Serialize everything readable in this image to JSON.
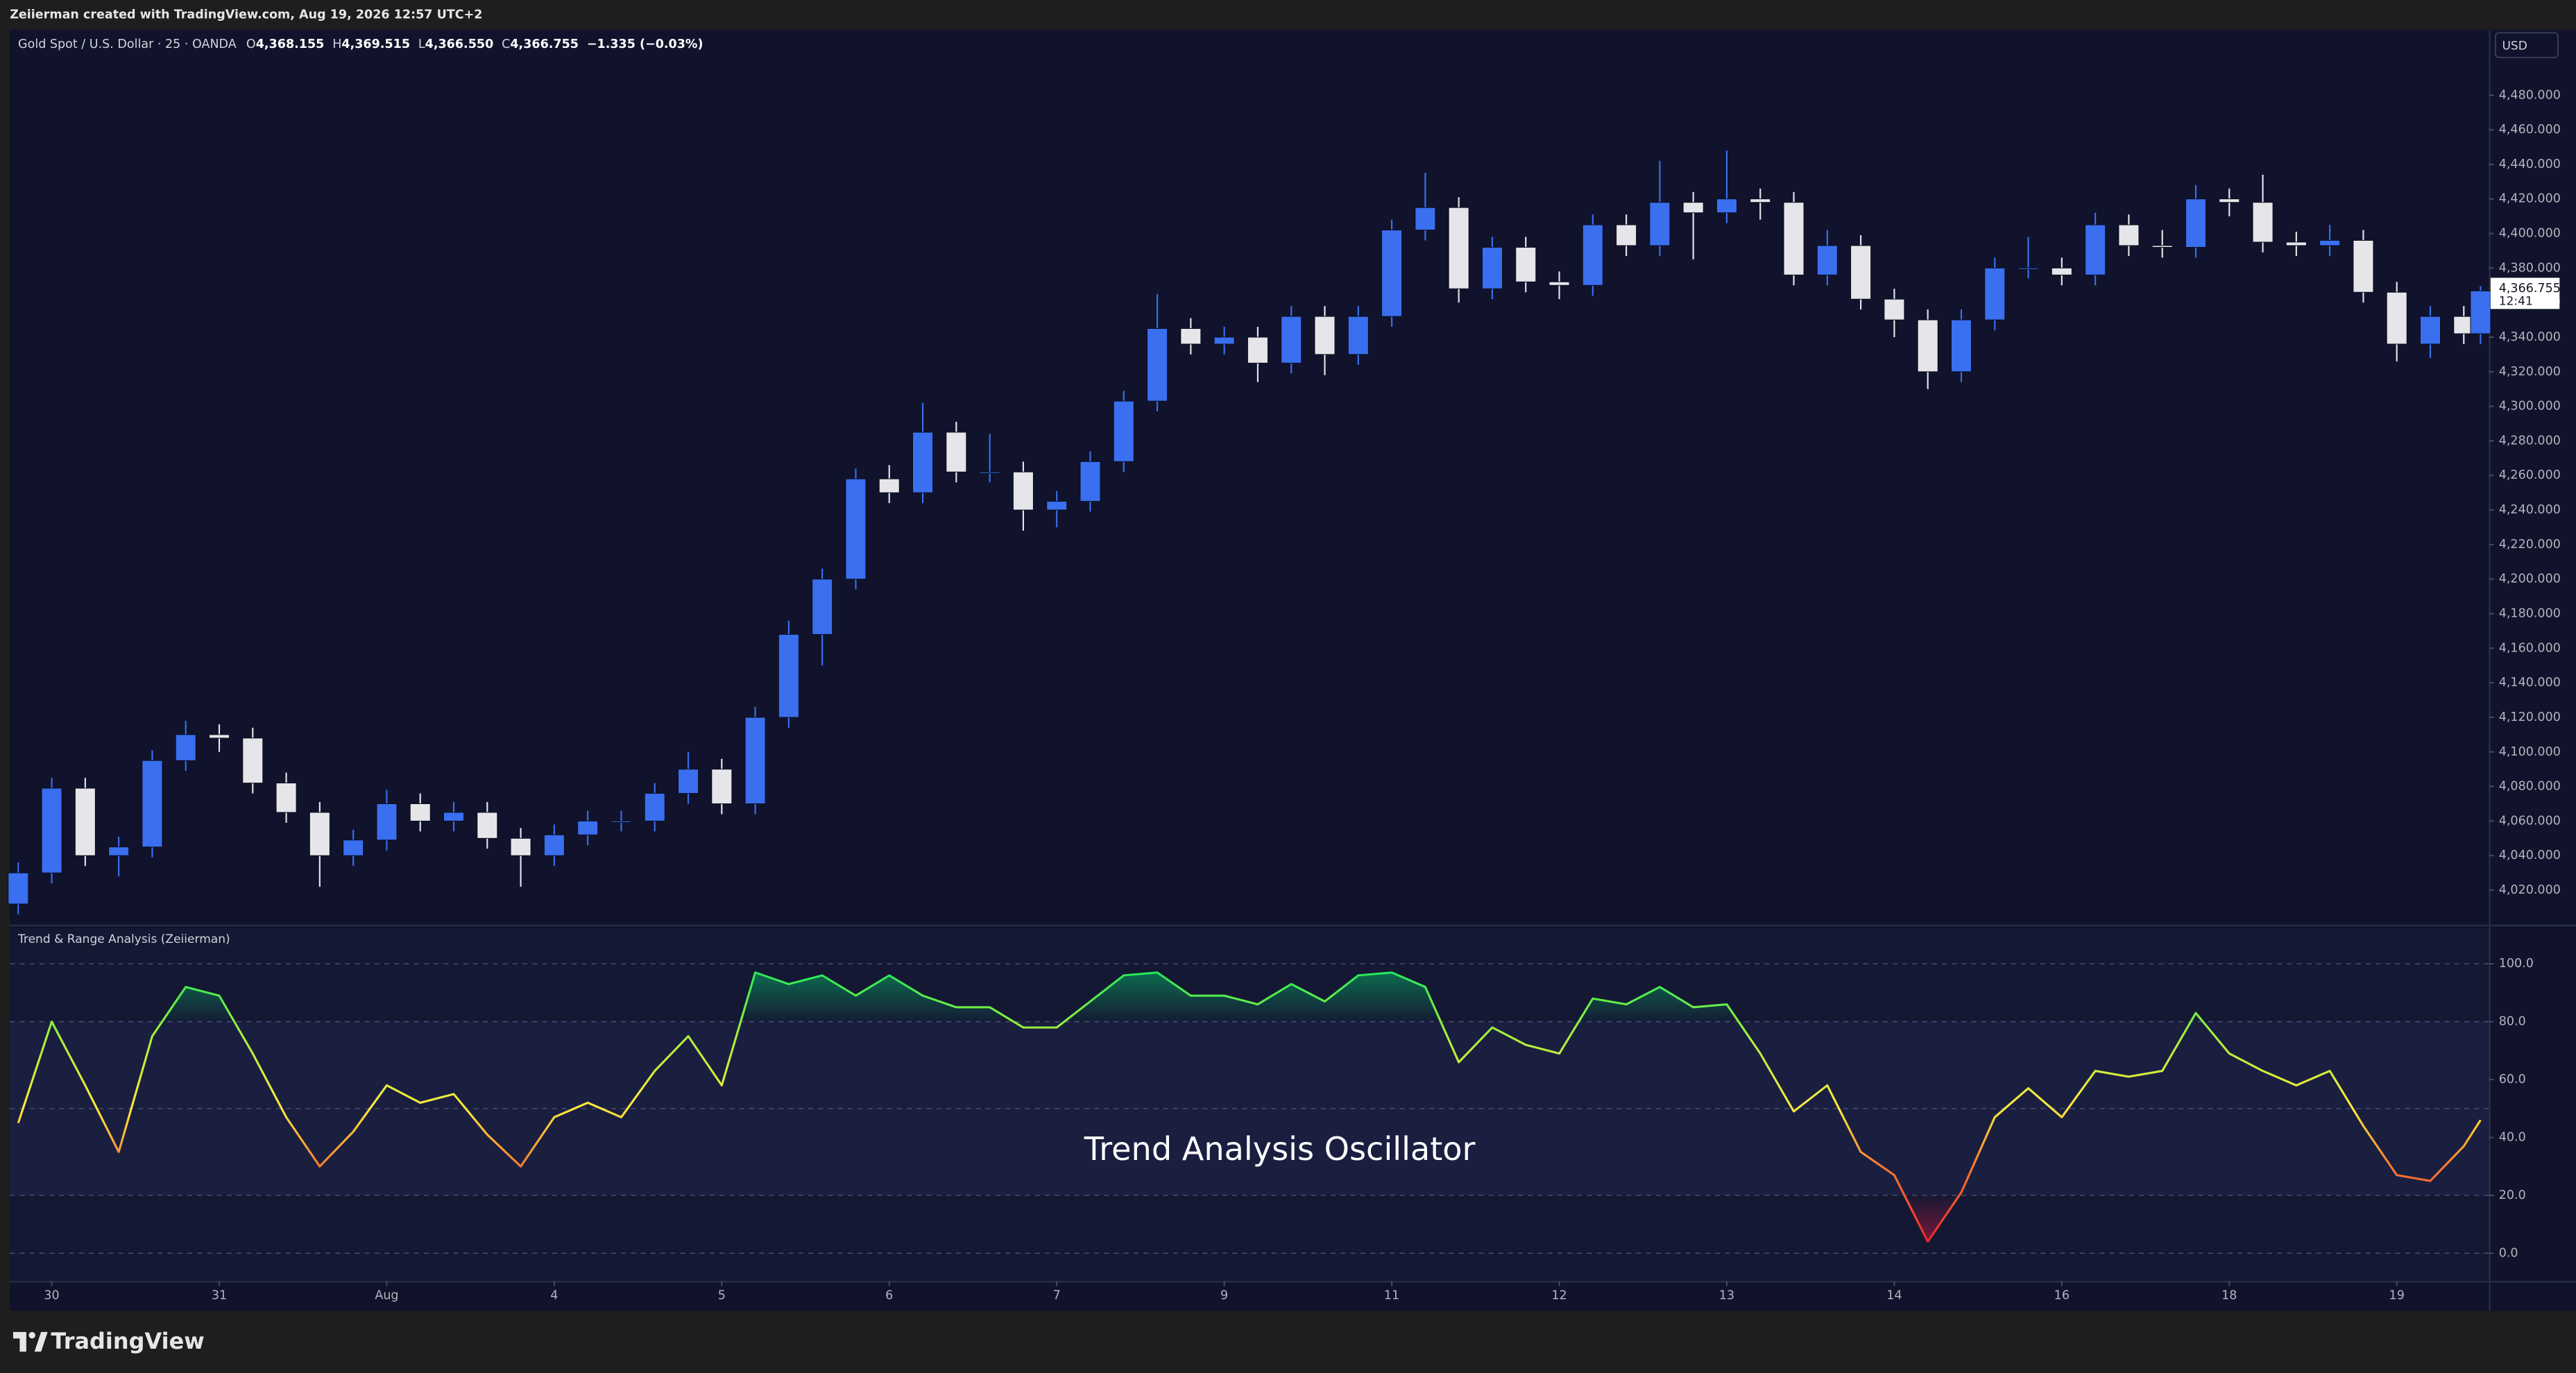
{
  "header": {
    "credit": "Zeiierman created with TradingView.com, Aug 19, 2026 12:57 UTC+2"
  },
  "footer": {
    "brand": "TradingView"
  },
  "chart_data": [
    {
      "type": "candlestick",
      "title": "Gold Spot / U.S. Dollar · 25 · OANDA",
      "ohlc_labels": [
        "O",
        "H",
        "L",
        "C"
      ],
      "ohlc_values": [
        "4,368.155",
        "4,369.515",
        "4,366.550",
        "4,366.755"
      ],
      "change": "−1.335 (−0.03%)",
      "currency": "USD",
      "last_price": {
        "value": 4366.755,
        "label": "4,366.755"
      },
      "countdown": "12:41",
      "up_color": "#3a6ff0",
      "down_color": "#e6e6ea",
      "grid": false,
      "xlim": [
        -0.25,
        14.55
      ],
      "ylim": [
        4001,
        4518
      ],
      "yticks": [
        {
          "value": 4020,
          "label": "4,020.000"
        },
        {
          "value": 4040,
          "label": "4,040.000"
        },
        {
          "value": 4060,
          "label": "4,060.000"
        },
        {
          "value": 4080,
          "label": "4,080.000"
        },
        {
          "value": 4100,
          "label": "4,100.000"
        },
        {
          "value": 4120,
          "label": "4,120.000"
        },
        {
          "value": 4140,
          "label": "4,140.000"
        },
        {
          "value": 4160,
          "label": "4,160.000"
        },
        {
          "value": 4180,
          "label": "4,180.000"
        },
        {
          "value": 4200,
          "label": "4,200.000"
        },
        {
          "value": 4220,
          "label": "4,220.000"
        },
        {
          "value": 4240,
          "label": "4,240.000"
        },
        {
          "value": 4260,
          "label": "4,260.000"
        },
        {
          "value": 4280,
          "label": "4,280.000"
        },
        {
          "value": 4300,
          "label": "4,300.000"
        },
        {
          "value": 4320,
          "label": "4,320.000"
        },
        {
          "value": 4340,
          "label": "4,340.000"
        },
        {
          "value": 4360,
          "label": "4,360.000"
        },
        {
          "value": 4380,
          "label": "4,380.000"
        },
        {
          "value": 4400,
          "label": "4,400.000"
        },
        {
          "value": 4420,
          "label": "4,420.000"
        },
        {
          "value": 4440,
          "label": "4,440.000"
        },
        {
          "value": 4460,
          "label": "4,460.000"
        },
        {
          "value": 4480,
          "label": "4,480.000"
        }
      ],
      "x": [
        -0.2,
        0,
        0.2,
        0.4,
        0.6,
        0.8,
        1,
        1.2,
        1.4,
        1.6,
        1.8,
        2,
        2.2,
        2.4,
        2.6,
        2.8,
        3,
        3.2,
        3.4,
        3.6,
        3.8,
        4,
        4.2,
        4.4,
        4.6,
        4.8,
        5,
        5.2,
        5.4,
        5.6,
        5.8,
        6,
        6.2,
        6.4,
        6.6,
        6.8,
        7,
        7.2,
        7.4,
        7.6,
        7.8,
        8,
        8.2,
        8.4,
        8.6,
        8.8,
        9,
        9.2,
        9.4,
        9.6,
        9.8,
        10,
        10.2,
        10.4,
        10.6,
        10.8,
        11,
        11.2,
        11.4,
        11.6,
        11.8,
        12,
        12.2,
        12.4,
        12.6,
        12.8,
        13,
        13.2,
        13.4,
        13.6,
        13.8,
        14,
        14.2,
        14.4,
        14.5
      ],
      "open": [
        4012,
        4030,
        4079,
        4040,
        4045,
        4095,
        4110,
        4108,
        4082,
        4065,
        4040,
        4049,
        4070,
        4060,
        4065,
        4050,
        4040,
        4052,
        4060,
        4060,
        4076,
        4090,
        4070,
        4120,
        4168,
        4200,
        4258,
        4250,
        4285,
        4262,
        4262,
        4240,
        4245,
        4268,
        4303,
        4345,
        4336,
        4340,
        4325,
        4352,
        4330,
        4352,
        4402,
        4415,
        4368,
        4392,
        4372,
        4370,
        4405,
        4393,
        4418,
        4412,
        4420,
        4418,
        4376,
        4393,
        4362,
        4350,
        4320,
        4350,
        4380,
        4380,
        4376,
        4405,
        4393,
        4392,
        4420,
        4418,
        4395,
        4393,
        4396,
        4366,
        4336,
        4352,
        4342
      ],
      "high": [
        4036,
        4085,
        4085,
        4051,
        4101,
        4118,
        4116,
        4114,
        4088,
        4071,
        4055,
        4078,
        4076,
        4071,
        4071,
        4056,
        4058,
        4066,
        4066,
        4082,
        4100,
        4096,
        4126,
        4176,
        4206,
        4264,
        4266,
        4302,
        4291,
        4284,
        4268,
        4251,
        4274,
        4309,
        4365,
        4351,
        4346,
        4346,
        4358,
        4358,
        4358,
        4408,
        4435,
        4421,
        4398,
        4398,
        4378,
        4411,
        4411,
        4442,
        4424,
        4448,
        4426,
        4424,
        4402,
        4399,
        4368,
        4356,
        4356,
        4386,
        4398,
        4386,
        4412,
        4411,
        4402,
        4428,
        4426,
        4434,
        4401,
        4405,
        4402,
        4372,
        4358,
        4358,
        4369.515
      ],
      "low": [
        4006,
        4024,
        4034,
        4028,
        4039,
        4089,
        4100,
        4076,
        4059,
        4022,
        4034,
        4043,
        4054,
        4054,
        4044,
        4022,
        4034,
        4046,
        4054,
        4054,
        4070,
        4064,
        4064,
        4114,
        4150,
        4194,
        4244,
        4244,
        4256,
        4256,
        4228,
        4230,
        4239,
        4262,
        4297,
        4330,
        4330,
        4314,
        4319,
        4318,
        4324,
        4346,
        4396,
        4360,
        4362,
        4366,
        4362,
        4364,
        4387,
        4387,
        4385,
        4406,
        4408,
        4370,
        4370,
        4356,
        4340,
        4310,
        4314,
        4344,
        4374,
        4370,
        4370,
        4387,
        4386,
        4386,
        4410,
        4389,
        4387,
        4387,
        4360,
        4326,
        4328,
        4336,
        4336
      ],
      "close": [
        4030,
        4079,
        4040,
        4045,
        4095,
        4110,
        4108,
        4082,
        4065,
        4040,
        4049,
        4070,
        4060,
        4065,
        4050,
        4040,
        4052,
        4060,
        4060,
        4076,
        4090,
        4070,
        4120,
        4168,
        4200,
        4258,
        4250,
        4285,
        4262,
        4262,
        4240,
        4245,
        4268,
        4303,
        4345,
        4336,
        4340,
        4325,
        4352,
        4330,
        4352,
        4402,
        4415,
        4368,
        4392,
        4372,
        4370,
        4405,
        4393,
        4418,
        4412,
        4420,
        4418,
        4376,
        4393,
        4362,
        4350,
        4320,
        4350,
        4380,
        4380,
        4376,
        4405,
        4393,
        4392,
        4420,
        4418,
        4395,
        4393,
        4396,
        4366,
        4336,
        4352,
        4342,
        4366.755
      ]
    },
    {
      "type": "line",
      "title": "Trend & Range Analysis (Zeiierman)",
      "annotation": "Trend Analysis Oscillator",
      "xlim": [
        -0.25,
        14.55
      ],
      "xticks": [
        {
          "value": 0,
          "label": "30"
        },
        {
          "value": 1,
          "label": "31"
        },
        {
          "value": 2,
          "label": "Aug"
        },
        {
          "value": 3,
          "label": "4"
        },
        {
          "value": 4,
          "label": "5"
        },
        {
          "value": 5,
          "label": "6"
        },
        {
          "value": 6,
          "label": "7"
        },
        {
          "value": 7,
          "label": "9"
        },
        {
          "value": 8,
          "label": "11"
        },
        {
          "value": 9,
          "label": "12"
        },
        {
          "value": 10,
          "label": "13"
        },
        {
          "value": 11,
          "label": "14"
        },
        {
          "value": 12,
          "label": "16"
        },
        {
          "value": 13,
          "label": "18"
        },
        {
          "value": 14,
          "label": "19"
        }
      ],
      "ylim": [
        -9.6,
        112.4
      ],
      "yticks": [
        {
          "value": 0,
          "label": "0.0"
        },
        {
          "value": 20,
          "label": "20.0"
        },
        {
          "value": 40,
          "label": "40.0"
        },
        {
          "value": 60,
          "label": "60.0"
        },
        {
          "value": 80,
          "label": "80.0"
        },
        {
          "value": 100,
          "label": "100.0"
        }
      ],
      "levels": [
        0,
        20,
        50,
        80,
        100
      ],
      "band": [
        20,
        80
      ],
      "upper_fill": {
        "level": 80,
        "color": "#00e676"
      },
      "lower_fill": {
        "level": 20,
        "color": "#ff1744"
      },
      "color_stops": [
        {
          "value": 0,
          "color": "#e8192c"
        },
        {
          "value": 30,
          "color": "#ff7b2e"
        },
        {
          "value": 50,
          "color": "#ffe93b"
        },
        {
          "value": 75,
          "color": "#a8f03a"
        },
        {
          "value": 100,
          "color": "#14e85c"
        }
      ],
      "x": [
        -0.2,
        0,
        0.2,
        0.4,
        0.6,
        0.8,
        1,
        1.2,
        1.4,
        1.6,
        1.8,
        2,
        2.2,
        2.4,
        2.6,
        2.8,
        3,
        3.2,
        3.4,
        3.6,
        3.8,
        4,
        4.2,
        4.4,
        4.6,
        4.8,
        5,
        5.2,
        5.4,
        5.6,
        5.8,
        6,
        6.2,
        6.4,
        6.6,
        6.8,
        7,
        7.2,
        7.4,
        7.6,
        7.8,
        8,
        8.2,
        8.4,
        8.6,
        8.8,
        9,
        9.2,
        9.4,
        9.6,
        9.8,
        10,
        10.2,
        10.4,
        10.6,
        10.8,
        11,
        11.2,
        11.4,
        11.6,
        11.8,
        12,
        12.2,
        12.4,
        12.6,
        12.8,
        13,
        13.2,
        13.4,
        13.6,
        13.8,
        14,
        14.2,
        14.4,
        14.5
      ],
      "values": [
        45,
        80,
        58,
        35,
        75,
        92,
        89,
        69,
        47,
        30,
        42,
        58,
        52,
        55,
        41,
        30,
        47,
        52,
        47,
        63,
        75,
        58,
        97,
        93,
        96,
        89,
        96,
        89,
        85,
        85,
        78,
        78,
        87,
        96,
        97,
        89,
        89,
        86,
        93,
        87,
        96,
        97,
        92,
        66,
        78,
        72,
        69,
        88,
        86,
        92,
        85,
        86,
        69,
        49,
        58,
        35,
        27,
        4,
        21,
        47,
        57,
        47,
        63,
        61,
        63,
        83,
        69,
        63,
        58,
        63,
        44,
        27,
        25,
        37,
        46
      ]
    }
  ]
}
